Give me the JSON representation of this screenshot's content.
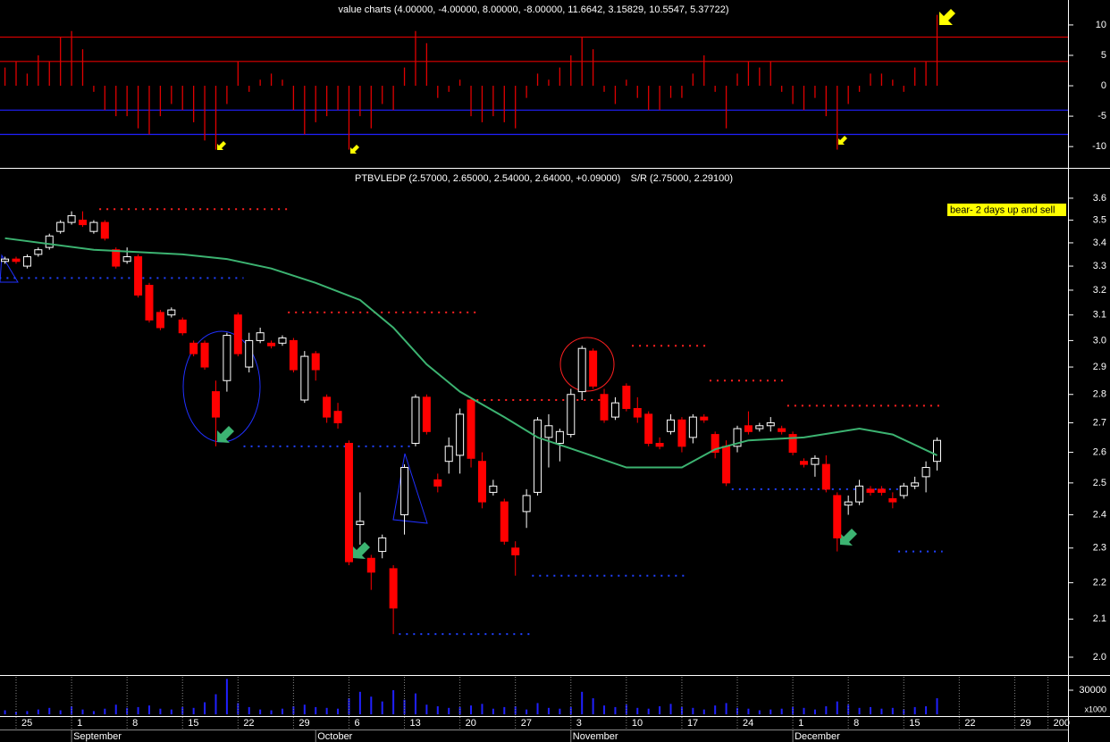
{
  "chart_data": [
    {
      "type": "bar",
      "title": "value charts (4.00000, -4.00000, 8.00000, -8.00000, 11.6642, 3.15829, 10.5547, 5.37722)",
      "color": "#e00000",
      "xlim": [
        -0.45,
        95.8
      ],
      "ylim": [
        -13.5,
        14.1
      ],
      "yticks": [
        10,
        5,
        0,
        -5,
        -10
      ],
      "levels": [
        {
          "value": 8,
          "color": "#e00000"
        },
        {
          "value": 4,
          "color": "#e00000"
        },
        {
          "value": -4,
          "color": "#2020ff"
        },
        {
          "value": -8,
          "color": "#2020ff"
        }
      ],
      "values": [
        3,
        4,
        2,
        5,
        4,
        8,
        9,
        6,
        -1,
        -4,
        -5,
        -5,
        -7,
        -8,
        -5,
        -3,
        -4,
        -6,
        -9,
        -10.5,
        -3,
        4,
        -1,
        1,
        2,
        1,
        -4,
        -8,
        -6,
        -5,
        -4,
        -10.5,
        -5,
        -7,
        -3,
        -4,
        3,
        9,
        7,
        -2,
        -1,
        1,
        -5,
        -6,
        -5,
        -6,
        -7,
        -2,
        2,
        1,
        3,
        5,
        8,
        6,
        -1,
        -3,
        1,
        -2,
        -4,
        -4,
        -2,
        -2,
        2,
        5,
        -1,
        -7,
        2,
        4,
        3,
        4,
        -1,
        -3,
        -4,
        -2,
        -5,
        -10.5,
        -3,
        -1,
        2,
        2,
        1,
        -1,
        3,
        4,
        11.6642
      ]
    },
    {
      "type": "candlestick",
      "title": "PTBVLEDP (2.57000, 2.65000, 2.54000, 2.64000, +0.09000)",
      "subtitle": "S/R (2.75000, 2.29100)",
      "annotation": "bear- 2 days up and sell",
      "log_scale": true,
      "up_color": "#ffffff",
      "down_color": "#ff0000",
      "xlim": [
        -0.45,
        95.8
      ],
      "ylim": [
        1.957,
        3.734
      ],
      "yticks": [
        3.6,
        3.5,
        3.4,
        3.3,
        3.2,
        3.1,
        {
          "value": 3,
          "label": "3.0"
        },
        2.9,
        2.8,
        2.7,
        2.6,
        2.5,
        2.4,
        2.3,
        2.2,
        2.1,
        {
          "value": 2,
          "label": "2.0"
        }
      ],
      "open": [
        3.32,
        3.33,
        3.3,
        3.35,
        3.38,
        3.45,
        3.49,
        3.5,
        3.45,
        3.49,
        3.37,
        3.32,
        3.34,
        3.22,
        3.11,
        3.1,
        3.08,
        2.99,
        2.99,
        2.81,
        2.85,
        3.1,
        2.9,
        3.0,
        2.99,
        2.99,
        3.0,
        2.78,
        2.95,
        2.79,
        2.74,
        2.63,
        2.37,
        2.27,
        2.29,
        2.24,
        2.4,
        2.63,
        2.79,
        2.51,
        2.57,
        2.59,
        2.78,
        2.57,
        2.47,
        2.44,
        2.3,
        2.41,
        2.47,
        2.65,
        2.63,
        2.66,
        2.81,
        2.96,
        2.8,
        2.72,
        2.83,
        2.75,
        2.73,
        2.63,
        2.67,
        2.71,
        2.65,
        2.72,
        2.66,
        2.62,
        2.62,
        2.69,
        2.68,
        2.69,
        2.68,
        2.66,
        2.57,
        2.56,
        2.56,
        2.46,
        2.43,
        2.44,
        2.48,
        2.48,
        2.45,
        2.46,
        2.49,
        2.52,
        2.57
      ],
      "high": [
        3.34,
        3.34,
        3.35,
        3.38,
        3.44,
        3.5,
        3.54,
        3.54,
        3.5,
        3.5,
        3.38,
        3.38,
        3.35,
        3.23,
        3.12,
        3.13,
        3.09,
        3.0,
        3.0,
        2.85,
        3.03,
        3.11,
        3.03,
        3.05,
        3.0,
        3.02,
        3.01,
        2.96,
        2.96,
        2.8,
        2.77,
        2.64,
        2.47,
        2.28,
        2.34,
        2.25,
        2.56,
        2.8,
        2.8,
        2.53,
        2.65,
        2.75,
        2.79,
        2.6,
        2.51,
        2.45,
        2.32,
        2.48,
        2.72,
        2.73,
        2.68,
        2.82,
        2.98,
        2.97,
        2.82,
        2.79,
        2.84,
        2.79,
        2.74,
        2.65,
        2.73,
        2.72,
        2.73,
        2.73,
        2.67,
        2.64,
        2.69,
        2.74,
        2.7,
        2.72,
        2.69,
        2.67,
        2.58,
        2.59,
        2.59,
        2.47,
        2.46,
        2.51,
        2.49,
        2.49,
        2.47,
        2.5,
        2.52,
        2.57,
        2.65
      ],
      "low": [
        3.31,
        3.31,
        3.29,
        3.34,
        3.37,
        3.44,
        3.48,
        3.47,
        3.44,
        3.41,
        3.29,
        3.31,
        3.17,
        3.07,
        3.04,
        3.09,
        3.02,
        2.94,
        2.89,
        2.62,
        2.81,
        2.94,
        2.88,
        2.99,
        2.97,
        2.98,
        2.88,
        2.77,
        2.85,
        2.7,
        2.68,
        2.25,
        2.31,
        2.18,
        2.27,
        2.06,
        2.34,
        2.62,
        2.66,
        2.47,
        2.53,
        2.53,
        2.55,
        2.42,
        2.46,
        2.31,
        2.22,
        2.36,
        2.46,
        2.55,
        2.57,
        2.65,
        2.78,
        2.82,
        2.7,
        2.71,
        2.74,
        2.7,
        2.62,
        2.61,
        2.66,
        2.6,
        2.63,
        2.7,
        2.58,
        2.49,
        2.6,
        2.66,
        2.67,
        2.67,
        2.66,
        2.59,
        2.55,
        2.52,
        2.47,
        2.29,
        2.4,
        2.43,
        2.46,
        2.46,
        2.42,
        2.45,
        2.48,
        2.47,
        2.54
      ],
      "close": [
        3.33,
        3.32,
        3.34,
        3.37,
        3.43,
        3.49,
        3.52,
        3.48,
        3.49,
        3.42,
        3.3,
        3.34,
        3.18,
        3.08,
        3.05,
        3.12,
        3.03,
        2.95,
        2.9,
        2.72,
        3.02,
        2.95,
        3.0,
        3.03,
        2.98,
        3.01,
        2.89,
        2.94,
        2.89,
        2.72,
        2.7,
        2.26,
        2.38,
        2.23,
        2.33,
        2.13,
        2.55,
        2.79,
        2.67,
        2.49,
        2.62,
        2.73,
        2.58,
        2.44,
        2.49,
        2.32,
        2.28,
        2.46,
        2.71,
        2.69,
        2.67,
        2.8,
        2.97,
        2.83,
        2.71,
        2.77,
        2.75,
        2.72,
        2.63,
        2.62,
        2.71,
        2.62,
        2.72,
        2.71,
        2.6,
        2.5,
        2.68,
        2.67,
        2.69,
        2.7,
        2.67,
        2.6,
        2.56,
        2.58,
        2.48,
        2.33,
        2.44,
        2.49,
        2.47,
        2.47,
        2.44,
        2.49,
        2.5,
        2.55,
        2.64
      ],
      "ma": {
        "color": "#3cb371",
        "x": [
          0,
          8,
          16,
          20,
          24,
          28,
          32,
          35,
          38,
          41,
          45,
          48,
          52,
          56,
          61,
          64,
          67,
          72,
          77,
          80,
          84
        ],
        "values": [
          3.42,
          3.37,
          3.35,
          3.33,
          3.29,
          3.23,
          3.16,
          3.05,
          2.91,
          2.81,
          2.72,
          2.65,
          2.6,
          2.55,
          2.55,
          2.61,
          2.64,
          2.65,
          2.68,
          2.66,
          2.59
        ]
      },
      "levels": [
        {
          "color": "#ff2020",
          "from": 9,
          "to": 25,
          "value": 3.55
        },
        {
          "color": "#ff2020",
          "from": 26,
          "to": 42,
          "value": 3.11
        },
        {
          "color": "#ff2020",
          "from": 43,
          "to": 54,
          "value": 2.78
        },
        {
          "color": "#ff2020",
          "from": 57,
          "to": 63,
          "value": 2.98
        },
        {
          "color": "#ff2020",
          "from": 64,
          "to": 70,
          "value": 2.85
        },
        {
          "color": "#ff2020",
          "from": 71,
          "to": 84,
          "value": 2.76
        },
        {
          "color": "#2040ff",
          "from": 0,
          "to": 21,
          "value": 3.25
        },
        {
          "color": "#2040ff",
          "from": 22,
          "to": 36,
          "value": 2.62
        },
        {
          "color": "#2040ff",
          "from": 36,
          "to": 47,
          "value": 2.06
        },
        {
          "color": "#2040ff",
          "from": 48,
          "to": 61,
          "value": 2.22
        },
        {
          "color": "#2040ff",
          "from": 66,
          "to": 80,
          "value": 2.48
        },
        {
          "color": "#2040ff",
          "from": 81,
          "to": 84,
          "value": 2.29
        }
      ]
    },
    {
      "type": "bar",
      "color": "#2020ff",
      "unit_label": "x1000",
      "xlim": [
        -0.45,
        95.8
      ],
      "ylim": [
        0,
        46667
      ],
      "yticks": [
        30000
      ],
      "values": [
        5000,
        3000,
        4000,
        6000,
        8000,
        5000,
        10000,
        6000,
        4000,
        7000,
        12000,
        8000,
        9000,
        11000,
        7000,
        6000,
        9000,
        8000,
        15000,
        25000,
        44000,
        14000,
        9000,
        6000,
        5000,
        7000,
        10000,
        12000,
        9000,
        8000,
        7000,
        20000,
        28000,
        22000,
        16000,
        30000,
        18000,
        26000,
        12000,
        10000,
        8000,
        9000,
        11000,
        13000,
        7000,
        9000,
        10000,
        6000,
        14000,
        8000,
        7000,
        9000,
        28000,
        20000,
        11000,
        9000,
        12000,
        8000,
        7000,
        10000,
        13000,
        9000,
        8000,
        6000,
        11000,
        14000,
        8000,
        7000,
        5000,
        6000,
        7000,
        9000,
        8000,
        6000,
        10000,
        16000,
        12000,
        8000,
        9000,
        7000,
        8000,
        6000,
        9000,
        10000,
        20000
      ],
      "xticks": [
        {
          "value": 1,
          "label": "25"
        },
        {
          "value": 6,
          "label": "1"
        },
        {
          "value": 11,
          "label": "8"
        },
        {
          "value": 16,
          "label": "15"
        },
        {
          "value": 21,
          "label": "22"
        },
        {
          "value": 26,
          "label": "29"
        },
        {
          "value": 31,
          "label": "6"
        },
        {
          "value": 36,
          "label": "13"
        },
        {
          "value": 41,
          "label": "20"
        },
        {
          "value": 46,
          "label": "27"
        },
        {
          "value": 51,
          "label": "3"
        },
        {
          "value": 56,
          "label": "10"
        },
        {
          "value": 61,
          "label": "17"
        },
        {
          "value": 66,
          "label": "24"
        },
        {
          "value": 71,
          "label": "1"
        },
        {
          "value": 76,
          "label": "8"
        },
        {
          "value": 81,
          "label": "15"
        },
        {
          "value": 86,
          "label": "22"
        },
        {
          "value": 91,
          "label": "29"
        },
        {
          "value": 94,
          "label": "200"
        }
      ],
      "xticks_months": [
        {
          "value": 6,
          "label": "September"
        },
        {
          "value": 28,
          "label": "October"
        },
        {
          "value": 51,
          "label": "November"
        },
        {
          "value": 71,
          "label": "December"
        }
      ]
    }
  ]
}
